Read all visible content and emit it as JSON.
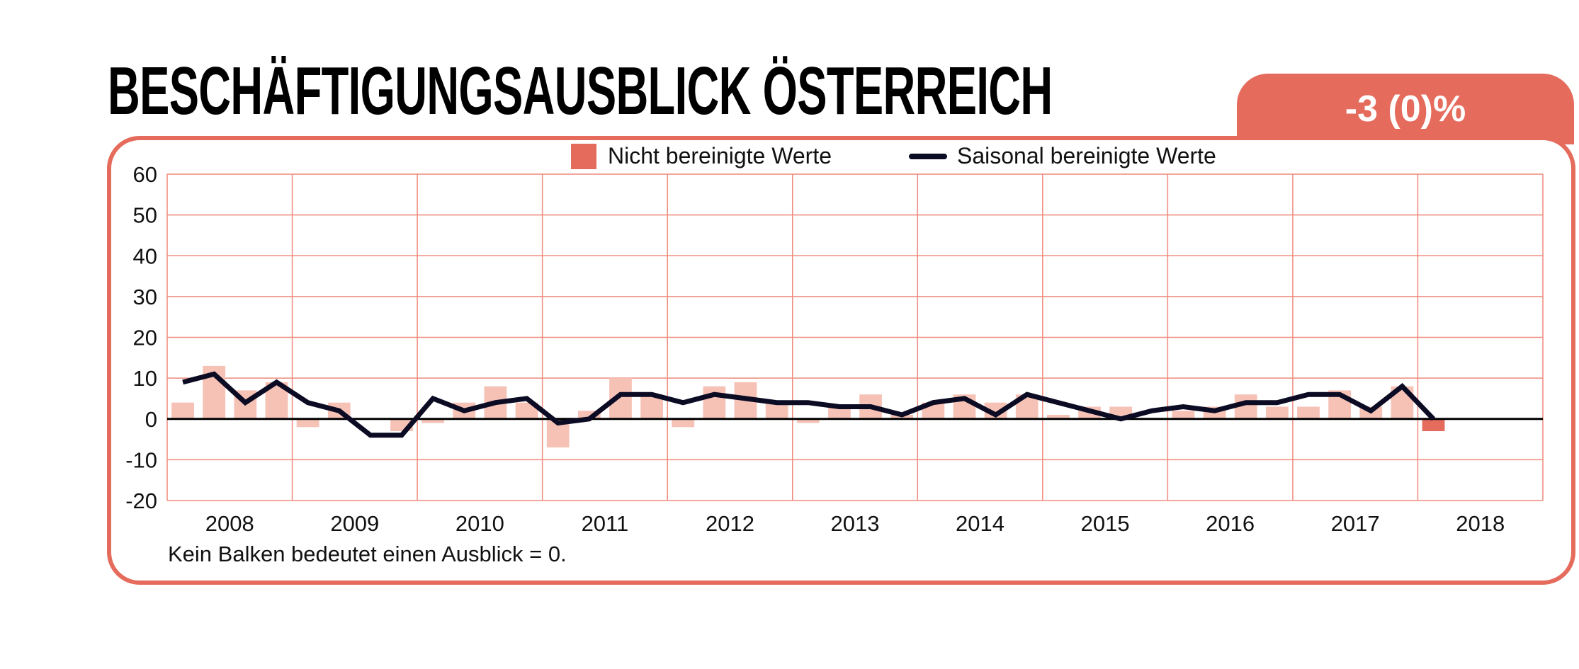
{
  "header": {
    "title": "BESCHÄFTIGUNGSAUSBLICK ÖSTERREICH",
    "headline_value": "-3 (0)%"
  },
  "legend": {
    "unadjusted": "Nicht bereinigte Werte",
    "adjusted": "Saisonal bereinigte Werte"
  },
  "footnote": "Kein Balken bedeutet einen Ausblick = 0.",
  "colors": {
    "accent": "#e56b5c",
    "bar_light": "#f6c2b6",
    "line": "#0b0b24",
    "grid": "#ef8a7c"
  },
  "chart_data": {
    "type": "bar",
    "title": "BESCHÄFTIGUNGSAUSBLICK ÖSTERREICH",
    "ylim": [
      -20,
      60
    ],
    "yticks": [
      60,
      50,
      40,
      30,
      20,
      10,
      0,
      -10,
      -20
    ],
    "year_labels": [
      "2008",
      "2009",
      "2010",
      "2011",
      "2012",
      "2013",
      "2014",
      "2015",
      "2016",
      "2017",
      "2018"
    ],
    "grid": true,
    "legend_position": "top",
    "categories": [
      "Q1 2008",
      "Q2 2008",
      "Q3 2008",
      "Q4 2008",
      "Q1 2009",
      "Q2 2009",
      "Q3 2009",
      "Q4 2009",
      "Q1 2010",
      "Q2 2010",
      "Q3 2010",
      "Q4 2010",
      "Q1 2011",
      "Q2 2011",
      "Q3 2011",
      "Q4 2011",
      "Q1 2012",
      "Q2 2012",
      "Q3 2012",
      "Q4 2012",
      "Q1 2013",
      "Q2 2013",
      "Q3 2013",
      "Q4 2013",
      "Q1 2014",
      "Q2 2014",
      "Q3 2014",
      "Q4 2014",
      "Q1 2015",
      "Q2 2015",
      "Q3 2015",
      "Q4 2015",
      "Q1 2016",
      "Q2 2016",
      "Q3 2016",
      "Q4 2016",
      "Q1 2017",
      "Q2 2017",
      "Q3 2017",
      "Q4 2017",
      "Q1 2018"
    ],
    "series": [
      {
        "name": "Nicht bereinigte Werte",
        "kind": "bar",
        "values": [
          4,
          13,
          7,
          9,
          -2,
          4,
          0,
          -3,
          -1,
          4,
          8,
          4,
          -7,
          2,
          10,
          6,
          -2,
          8,
          9,
          4,
          -1,
          3,
          6,
          1,
          4,
          6,
          4,
          6,
          1,
          3,
          3,
          0,
          2,
          3,
          6,
          3,
          3,
          7,
          3,
          8,
          -3
        ]
      },
      {
        "name": "Saisonal bereinigte Werte",
        "kind": "line",
        "values": [
          9,
          11,
          4,
          9,
          4,
          2,
          -4,
          -4,
          5,
          2,
          4,
          5,
          -1,
          0,
          6,
          6,
          4,
          6,
          5,
          4,
          4,
          3,
          3,
          1,
          4,
          5,
          1,
          6,
          4,
          2,
          0,
          2,
          3,
          2,
          4,
          4,
          6,
          6,
          2,
          8,
          0
        ]
      }
    ]
  }
}
